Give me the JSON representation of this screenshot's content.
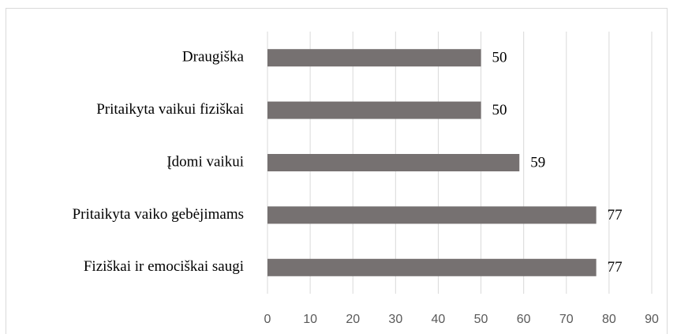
{
  "chart_data": {
    "type": "bar",
    "orientation": "horizontal",
    "categories": [
      "Draugiška",
      "Pritaikyta vaikui fiziškai",
      "Įdomi vaikui",
      "Pritaikyta vaiko gebėjimams",
      "Fiziškai ir emociškai saugi"
    ],
    "values": [
      50,
      50,
      59,
      77,
      77
    ],
    "color": "#767171",
    "xlim": [
      0,
      90
    ],
    "xticks": [
      0,
      10,
      20,
      30,
      40,
      50,
      60,
      70,
      80,
      90
    ],
    "grid": true
  }
}
